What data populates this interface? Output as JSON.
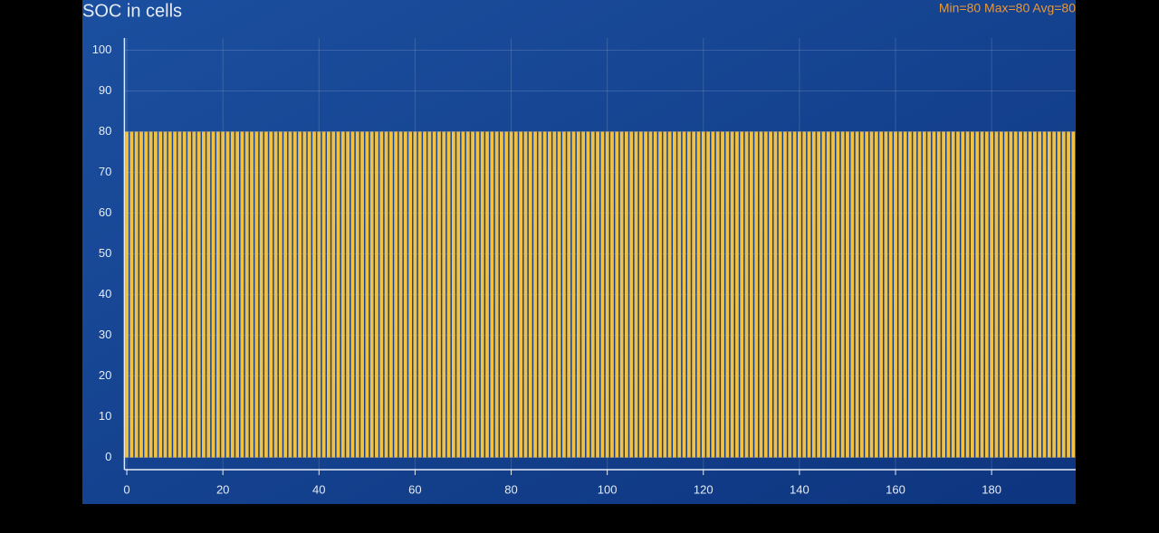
{
  "chart_data": {
    "type": "bar",
    "title": "SOC in cells",
    "annotation": "Min=80 Max=80 Avg=80",
    "x": [
      0,
      1,
      2,
      3,
      4,
      5,
      6,
      7,
      8,
      9,
      10,
      11,
      12,
      13,
      14,
      15,
      16,
      17,
      18,
      19,
      20,
      21,
      22,
      23,
      24,
      25,
      26,
      27,
      28,
      29,
      30,
      31,
      32,
      33,
      34,
      35,
      36,
      37,
      38,
      39,
      40,
      41,
      42,
      43,
      44,
      45,
      46,
      47,
      48,
      49,
      50,
      51,
      52,
      53,
      54,
      55,
      56,
      57,
      58,
      59,
      60,
      61,
      62,
      63,
      64,
      65,
      66,
      67,
      68,
      69,
      70,
      71,
      72,
      73,
      74,
      75,
      76,
      77,
      78,
      79,
      80,
      81,
      82,
      83,
      84,
      85,
      86,
      87,
      88,
      89,
      90,
      91,
      92,
      93,
      94,
      95,
      96,
      97,
      98,
      99,
      100,
      101,
      102,
      103,
      104,
      105,
      106,
      107,
      108,
      109,
      110,
      111,
      112,
      113,
      114,
      115,
      116,
      117,
      118,
      119,
      120,
      121,
      122,
      123,
      124,
      125,
      126,
      127,
      128,
      129,
      130,
      131,
      132,
      133,
      134,
      135,
      136,
      137,
      138,
      139,
      140,
      141,
      142,
      143,
      144,
      145,
      146,
      147,
      148,
      149,
      150,
      151,
      152,
      153,
      154,
      155,
      156,
      157,
      158,
      159,
      160,
      161,
      162,
      163,
      164,
      165,
      166,
      167,
      168,
      169,
      170,
      171,
      172,
      173,
      174,
      175,
      176,
      177,
      178,
      179,
      180,
      181,
      182,
      183,
      184,
      185,
      186,
      187,
      188,
      189,
      190,
      191,
      192,
      193,
      194,
      195,
      196,
      197
    ],
    "values": [
      80,
      80,
      80,
      80,
      80,
      80,
      80,
      80,
      80,
      80,
      80,
      80,
      80,
      80,
      80,
      80,
      80,
      80,
      80,
      80,
      80,
      80,
      80,
      80,
      80,
      80,
      80,
      80,
      80,
      80,
      80,
      80,
      80,
      80,
      80,
      80,
      80,
      80,
      80,
      80,
      80,
      80,
      80,
      80,
      80,
      80,
      80,
      80,
      80,
      80,
      80,
      80,
      80,
      80,
      80,
      80,
      80,
      80,
      80,
      80,
      80,
      80,
      80,
      80,
      80,
      80,
      80,
      80,
      80,
      80,
      80,
      80,
      80,
      80,
      80,
      80,
      80,
      80,
      80,
      80,
      80,
      80,
      80,
      80,
      80,
      80,
      80,
      80,
      80,
      80,
      80,
      80,
      80,
      80,
      80,
      80,
      80,
      80,
      80,
      80,
      80,
      80,
      80,
      80,
      80,
      80,
      80,
      80,
      80,
      80,
      80,
      80,
      80,
      80,
      80,
      80,
      80,
      80,
      80,
      80,
      80,
      80,
      80,
      80,
      80,
      80,
      80,
      80,
      80,
      80,
      80,
      80,
      80,
      80,
      80,
      80,
      80,
      80,
      80,
      80,
      80,
      80,
      80,
      80,
      80,
      80,
      80,
      80,
      80,
      80,
      80,
      80,
      80,
      80,
      80,
      80,
      80,
      80,
      80,
      80,
      80,
      80,
      80,
      80,
      80,
      80,
      80,
      80,
      80,
      80,
      80,
      80,
      80,
      80,
      80,
      80,
      80,
      80,
      80,
      80,
      80,
      80,
      80,
      80,
      80,
      80,
      80,
      80,
      80,
      80,
      80,
      80,
      80,
      80,
      80,
      80,
      80,
      80
    ],
    "color": "#f2c141",
    "xlim": [
      -0.5,
      197.5
    ],
    "ylim": [
      -3,
      103
    ],
    "xticks": [
      0,
      20,
      40,
      60,
      80,
      100,
      120,
      140,
      160,
      180
    ],
    "yticks": [
      0,
      10,
      20,
      30,
      40,
      50,
      60,
      70,
      80,
      90,
      100
    ],
    "grid": true
  }
}
